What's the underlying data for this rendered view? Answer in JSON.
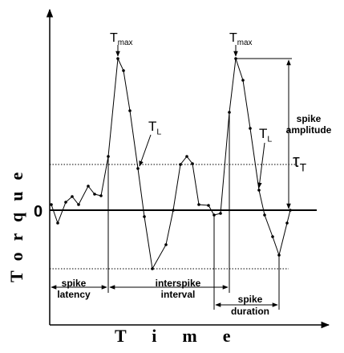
{
  "y_axis_label": "Torque",
  "x_axis_label": "Time",
  "zero_label": "0",
  "tmax_labels": [
    {
      "main": "T",
      "sub": "max"
    },
    {
      "main": "T",
      "sub": "max"
    }
  ],
  "tl_labels": [
    {
      "main": "T",
      "sub": "L"
    },
    {
      "main": "T",
      "sub": "L"
    }
  ],
  "threshold_label": {
    "main": "τ",
    "sub": "T"
  },
  "spike_amplitude": [
    "spike",
    "amplitude"
  ],
  "spike_latency": [
    "spike",
    "latency"
  ],
  "interspike_interval": [
    "interspike",
    "interval"
  ],
  "spike_duration": [
    "spike",
    "duration"
  ]
}
